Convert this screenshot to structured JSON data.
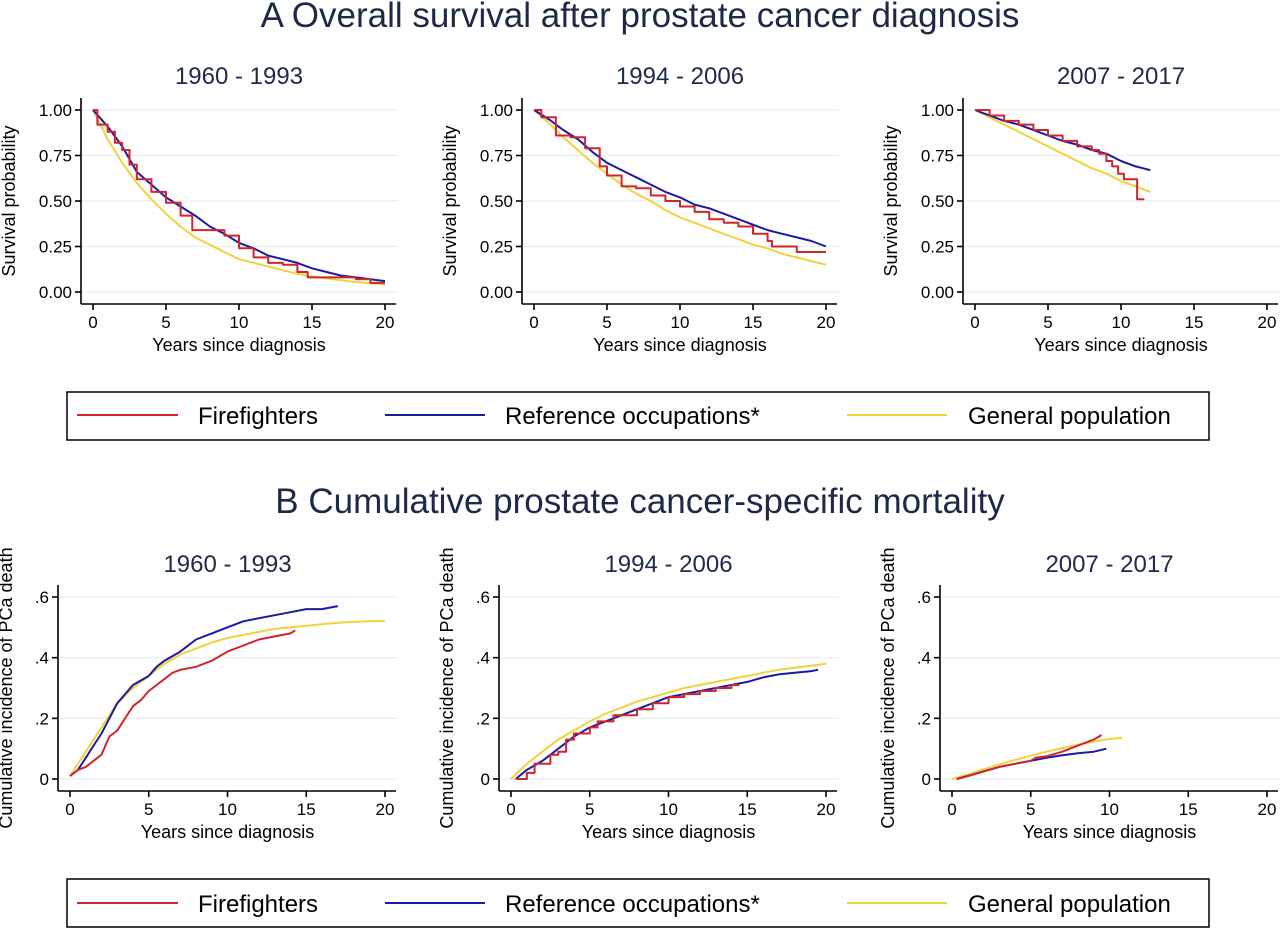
{
  "colors": {
    "firefighters": "#d0262b",
    "reference": "#1a1aa6",
    "general": "#f2d23c",
    "title": "#1c2a48"
  },
  "legend": {
    "items": [
      {
        "key": "firefighters",
        "label": "Firefighters"
      },
      {
        "key": "reference",
        "label": "Reference occupations*"
      },
      {
        "key": "general",
        "label": "General population"
      }
    ]
  },
  "chart_data": [
    {
      "section": "A",
      "section_title": "A Overall survival after prostate cancer diagnosis",
      "type": "line",
      "ylabel": "Survival probability",
      "xlabel": "Years since diagnosis",
      "xlim": [
        0,
        20
      ],
      "ylim": [
        0,
        1
      ],
      "xticks": [
        0,
        5,
        10,
        15,
        20
      ],
      "yticks": [
        0,
        0.25,
        0.5,
        0.75,
        1.0
      ],
      "ytick_labels": [
        "0.00",
        "0.25",
        "0.50",
        "0.75",
        "1.00"
      ],
      "grid": true,
      "legend_position": "bottom",
      "panels": [
        {
          "title": "1960 - 1993",
          "series": [
            {
              "name": "Firefighters",
              "key": "firefighters",
              "step": true,
              "x": [
                0,
                0.3,
                1,
                1.5,
                2,
                2.5,
                3,
                4,
                5,
                6,
                6.8,
                8,
                9,
                10,
                11,
                12,
                13,
                14,
                14.7,
                16,
                18,
                19,
                20
              ],
              "y": [
                1.0,
                0.92,
                0.88,
                0.82,
                0.78,
                0.7,
                0.62,
                0.55,
                0.49,
                0.42,
                0.34,
                0.34,
                0.31,
                0.24,
                0.19,
                0.16,
                0.15,
                0.11,
                0.08,
                0.08,
                0.07,
                0.05,
                0.05
              ]
            },
            {
              "name": "Reference occupations*",
              "key": "reference",
              "step": false,
              "x": [
                0,
                1,
                2,
                3,
                4,
                5,
                6,
                7,
                8,
                9,
                10,
                11,
                12,
                13,
                14,
                15,
                16,
                17,
                18,
                19,
                20
              ],
              "y": [
                1.0,
                0.91,
                0.8,
                0.66,
                0.59,
                0.52,
                0.47,
                0.42,
                0.36,
                0.32,
                0.27,
                0.24,
                0.2,
                0.18,
                0.16,
                0.13,
                0.11,
                0.09,
                0.08,
                0.07,
                0.06
              ]
            },
            {
              "name": "General population",
              "key": "general",
              "step": false,
              "x": [
                0,
                1,
                2,
                3,
                4,
                5,
                6,
                7,
                8,
                9,
                10,
                11,
                12,
                13,
                14,
                15,
                16,
                17,
                18,
                19,
                20
              ],
              "y": [
                1.0,
                0.84,
                0.71,
                0.6,
                0.51,
                0.43,
                0.36,
                0.3,
                0.26,
                0.22,
                0.18,
                0.16,
                0.14,
                0.12,
                0.1,
                0.085,
                0.075,
                0.065,
                0.055,
                0.048,
                0.04
              ]
            }
          ]
        },
        {
          "title": "1994 - 2006",
          "series": [
            {
              "name": "Firefighters",
              "key": "firefighters",
              "step": true,
              "x": [
                0,
                0.5,
                1.5,
                2.5,
                3.5,
                4.5,
                5,
                6,
                7,
                8,
                9,
                10,
                11,
                12,
                13,
                14,
                15,
                16,
                16.3,
                18,
                20
              ],
              "y": [
                1.0,
                0.96,
                0.86,
                0.85,
                0.79,
                0.69,
                0.64,
                0.58,
                0.57,
                0.53,
                0.5,
                0.47,
                0.44,
                0.4,
                0.38,
                0.36,
                0.32,
                0.28,
                0.25,
                0.22,
                0.22
              ]
            },
            {
              "name": "Reference occupations*",
              "key": "reference",
              "step": false,
              "x": [
                0,
                1,
                2,
                3,
                4,
                5,
                6,
                7,
                8,
                9,
                10,
                11,
                12,
                13,
                14,
                15,
                16,
                17,
                18,
                19,
                20
              ],
              "y": [
                1.0,
                0.95,
                0.89,
                0.84,
                0.77,
                0.71,
                0.67,
                0.63,
                0.59,
                0.55,
                0.52,
                0.48,
                0.46,
                0.43,
                0.4,
                0.37,
                0.34,
                0.32,
                0.3,
                0.28,
                0.25
              ]
            },
            {
              "name": "General population",
              "key": "general",
              "step": false,
              "x": [
                0,
                1,
                2,
                3,
                4,
                5,
                6,
                7,
                8,
                9,
                10,
                11,
                12,
                13,
                14,
                15,
                16,
                17,
                18,
                19,
                20
              ],
              "y": [
                1.0,
                0.93,
                0.85,
                0.78,
                0.71,
                0.65,
                0.59,
                0.54,
                0.5,
                0.45,
                0.41,
                0.38,
                0.35,
                0.32,
                0.29,
                0.26,
                0.24,
                0.21,
                0.19,
                0.17,
                0.15
              ]
            }
          ]
        },
        {
          "title": "2007 - 2017",
          "series": [
            {
              "name": "Firefighters",
              "key": "firefighters",
              "step": true,
              "x": [
                0,
                1,
                2,
                3,
                4,
                5,
                6,
                7,
                8,
                8.5,
                9,
                9.4,
                9.8,
                10.2,
                10.6,
                11.1,
                11.6
              ],
              "y": [
                1.0,
                0.97,
                0.94,
                0.92,
                0.89,
                0.86,
                0.83,
                0.8,
                0.78,
                0.76,
                0.72,
                0.69,
                0.65,
                0.62,
                0.62,
                0.51,
                0.51
              ]
            },
            {
              "name": "Reference occupations*",
              "key": "reference",
              "step": false,
              "x": [
                0,
                1,
                2,
                3,
                4,
                5,
                6,
                7,
                8,
                9,
                10,
                11,
                12
              ],
              "y": [
                1.0,
                0.97,
                0.94,
                0.92,
                0.89,
                0.86,
                0.83,
                0.81,
                0.78,
                0.76,
                0.72,
                0.69,
                0.67
              ]
            },
            {
              "name": "General population",
              "key": "general",
              "step": false,
              "x": [
                0,
                1,
                2,
                3,
                4,
                5,
                6,
                7,
                8,
                9,
                10,
                11,
                12
              ],
              "y": [
                1.0,
                0.96,
                0.92,
                0.88,
                0.84,
                0.8,
                0.76,
                0.72,
                0.68,
                0.65,
                0.61,
                0.58,
                0.55
              ]
            }
          ]
        }
      ]
    },
    {
      "section": "B",
      "section_title": "B Cumulative prostate cancer-specific mortality",
      "type": "line",
      "ylabel": "Cumulative incidence of PCa death",
      "xlabel": "Years since diagnosis",
      "xlim": [
        0,
        20
      ],
      "ylim": [
        0,
        0.6
      ],
      "xticks": [
        0,
        5,
        10,
        15,
        20
      ],
      "yticks": [
        0,
        0.2,
        0.4,
        0.6
      ],
      "ytick_labels": [
        "0",
        ".2",
        ".4",
        ".6"
      ],
      "grid": true,
      "legend_position": "bottom",
      "panels": [
        {
          "title": "1960 - 1993",
          "series": [
            {
              "name": "Firefighters",
              "key": "firefighters",
              "step": false,
              "x": [
                0,
                0.5,
                1,
                1.5,
                2,
                2.5,
                3,
                3.5,
                4,
                4.5,
                5,
                5.5,
                6,
                6.5,
                7,
                8,
                9,
                10,
                11,
                12,
                13,
                14,
                14.3
              ],
              "y": [
                0.01,
                0.03,
                0.04,
                0.06,
                0.08,
                0.14,
                0.16,
                0.2,
                0.24,
                0.26,
                0.29,
                0.31,
                0.33,
                0.35,
                0.36,
                0.37,
                0.39,
                0.42,
                0.44,
                0.46,
                0.47,
                0.48,
                0.49
              ]
            },
            {
              "name": "Reference occupations*",
              "key": "reference",
              "step": false,
              "x": [
                0,
                0.5,
                1,
                1.5,
                2,
                2.5,
                3,
                3.5,
                4,
                5,
                5.5,
                6,
                7,
                8,
                9,
                10,
                11,
                12,
                13,
                14,
                15,
                16,
                17
              ],
              "y": [
                0.01,
                0.03,
                0.07,
                0.11,
                0.15,
                0.2,
                0.25,
                0.28,
                0.31,
                0.34,
                0.37,
                0.39,
                0.42,
                0.46,
                0.48,
                0.5,
                0.52,
                0.53,
                0.54,
                0.55,
                0.56,
                0.56,
                0.57
              ]
            },
            {
              "name": "General population",
              "key": "general",
              "step": false,
              "x": [
                0,
                1,
                2,
                3,
                4,
                5,
                6,
                7,
                8,
                9,
                10,
                11,
                12,
                13,
                14,
                15,
                16,
                17,
                18,
                19,
                20
              ],
              "y": [
                0.01,
                0.09,
                0.17,
                0.25,
                0.3,
                0.34,
                0.38,
                0.41,
                0.43,
                0.45,
                0.465,
                0.475,
                0.485,
                0.495,
                0.5,
                0.505,
                0.51,
                0.515,
                0.518,
                0.52,
                0.522
              ]
            }
          ]
        },
        {
          "title": "1994 - 2006",
          "series": [
            {
              "name": "Firefighters",
              "key": "firefighters",
              "step": true,
              "x": [
                0.3,
                1,
                1.5,
                2.5,
                3,
                3.5,
                4,
                5,
                5.5,
                6.5,
                7,
                8,
                9,
                10,
                11,
                12,
                13,
                14,
                14.5
              ],
              "y": [
                0,
                0.02,
                0.05,
                0.08,
                0.09,
                0.13,
                0.15,
                0.17,
                0.19,
                0.21,
                0.21,
                0.23,
                0.25,
                0.27,
                0.28,
                0.29,
                0.3,
                0.31,
                0.31
              ]
            },
            {
              "name": "Reference occupations*",
              "key": "reference",
              "step": false,
              "x": [
                0.3,
                1,
                2,
                3,
                4,
                5,
                6,
                7,
                8,
                9,
                10,
                11,
                12,
                13,
                14,
                15,
                16,
                17,
                18,
                19,
                19.5
              ],
              "y": [
                0,
                0.03,
                0.06,
                0.1,
                0.14,
                0.17,
                0.19,
                0.21,
                0.23,
                0.25,
                0.27,
                0.28,
                0.29,
                0.3,
                0.31,
                0.32,
                0.335,
                0.345,
                0.35,
                0.355,
                0.36
              ]
            },
            {
              "name": "General population",
              "key": "general",
              "step": false,
              "x": [
                0,
                1,
                2,
                3,
                4,
                5,
                6,
                7,
                8,
                9,
                10,
                11,
                12,
                13,
                14,
                15,
                16,
                17,
                18,
                19,
                20
              ],
              "y": [
                0,
                0.05,
                0.09,
                0.13,
                0.16,
                0.19,
                0.215,
                0.235,
                0.255,
                0.27,
                0.285,
                0.3,
                0.31,
                0.32,
                0.33,
                0.34,
                0.35,
                0.36,
                0.367,
                0.373,
                0.38
              ]
            }
          ]
        },
        {
          "title": "2007 - 2017",
          "series": [
            {
              "name": "Firefighters",
              "key": "firefighters",
              "step": false,
              "x": [
                0.3,
                1,
                2,
                3,
                4,
                5,
                5.3,
                6,
                7,
                8,
                9,
                9.5
              ],
              "y": [
                0,
                0.01,
                0.025,
                0.04,
                0.05,
                0.06,
                0.07,
                0.075,
                0.09,
                0.11,
                0.13,
                0.145
              ]
            },
            {
              "name": "Reference occupations*",
              "key": "reference",
              "step": false,
              "x": [
                0.3,
                1,
                2,
                3,
                4,
                5,
                6,
                7,
                8,
                9,
                9.8
              ],
              "y": [
                0,
                0.01,
                0.025,
                0.04,
                0.05,
                0.06,
                0.07,
                0.078,
                0.085,
                0.09,
                0.1
              ]
            },
            {
              "name": "General population",
              "key": "general",
              "step": false,
              "x": [
                0,
                1,
                2,
                3,
                4,
                5,
                6,
                7,
                8,
                9,
                10,
                10.8
              ],
              "y": [
                0,
                0.015,
                0.032,
                0.048,
                0.063,
                0.077,
                0.09,
                0.102,
                0.113,
                0.123,
                0.132,
                0.136
              ]
            }
          ]
        }
      ]
    }
  ]
}
